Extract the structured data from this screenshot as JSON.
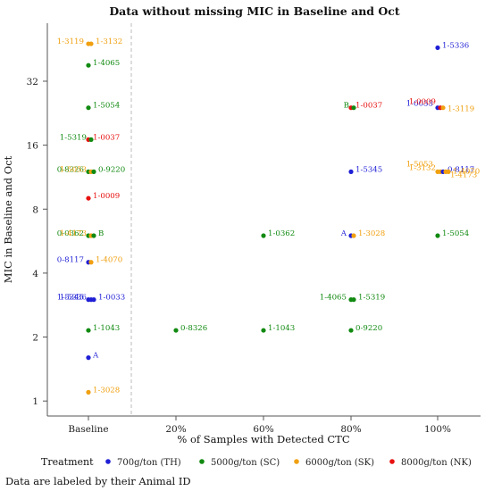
{
  "chart_data": {
    "type": "scatter",
    "title": "Data without missing MIC in Baseline and Oct",
    "xlabel": "% of Samples with Detected CTC",
    "ylabel": "MIC in Baseline and Oct",
    "x_categories": [
      "Baseline",
      "20%",
      "60%",
      "80%",
      "100%"
    ],
    "y_scale": "log2",
    "y_ticks": [
      1,
      2,
      4,
      8,
      16,
      32
    ],
    "ylim": [
      0.85,
      60
    ],
    "grid": false,
    "legend_placement": "bottom",
    "legend_title": "Treatment",
    "caption": "Data are labeled by their Animal ID",
    "series": [
      {
        "name": "700g/ton (TH)",
        "color": "#1f1fd6"
      },
      {
        "name": "5000g/ton (SC)",
        "color": "#118a11"
      },
      {
        "name": "6000g/ton (SK)",
        "color": "#f0a010"
      },
      {
        "name": "8000g/ton (NK)",
        "color": "#e81010"
      }
    ],
    "points": [
      {
        "x": "Baseline",
        "y": 48,
        "series": 2,
        "label": "1-3119",
        "side": "left",
        "off": 0
      },
      {
        "x": "Baseline",
        "y": 48,
        "series": 2,
        "label": "1-3132",
        "side": "right",
        "off": 0
      },
      {
        "x": "Baseline",
        "y": 38,
        "series": 1,
        "label": "1-4065",
        "side": "right",
        "off": 0
      },
      {
        "x": "Baseline",
        "y": 24,
        "series": 1,
        "label": "1-5054",
        "side": "right",
        "off": 0
      },
      {
        "x": "Baseline",
        "y": 17,
        "series": 3,
        "label": "1-0037",
        "side": "right",
        "off": 0
      },
      {
        "x": "Baseline",
        "y": 17,
        "series": 1,
        "label": "1-5319",
        "side": "left",
        "off": 0
      },
      {
        "x": "Baseline",
        "y": 12,
        "series": 1,
        "label": "0-8326",
        "side": "left",
        "off": 0
      },
      {
        "x": "Baseline",
        "y": 12,
        "series": 2,
        "label": "1-5053",
        "side": "left",
        "off": 0
      },
      {
        "x": "Baseline",
        "y": 12,
        "series": 1,
        "label": "0-9220",
        "side": "right",
        "off": 0
      },
      {
        "x": "Baseline",
        "y": 9,
        "series": 3,
        "label": "1-0009",
        "side": "right",
        "off": 0
      },
      {
        "x": "Baseline",
        "y": 6,
        "series": 1,
        "label": "0-0362",
        "side": "left",
        "off": 0
      },
      {
        "x": "Baseline",
        "y": 6,
        "series": 2,
        "label": "1-4173",
        "side": "left",
        "off": 0
      },
      {
        "x": "Baseline",
        "y": 6,
        "series": 1,
        "label": "B",
        "side": "right",
        "off": 0
      },
      {
        "x": "Baseline",
        "y": 4.5,
        "series": 0,
        "label": "0-8117",
        "side": "left",
        "off": 0
      },
      {
        "x": "Baseline",
        "y": 4.5,
        "series": 2,
        "label": "1-4070",
        "side": "right",
        "off": 0
      },
      {
        "x": "Baseline",
        "y": 3,
        "series": 0,
        "label": "1-5345",
        "side": "left",
        "off": 0
      },
      {
        "x": "Baseline",
        "y": 3,
        "series": 0,
        "label": "1-5336",
        "side": "left",
        "off": 0
      },
      {
        "x": "Baseline",
        "y": 3,
        "series": 0,
        "label": "1-0033",
        "side": "right",
        "off": 0
      },
      {
        "x": "Baseline",
        "y": 2.15,
        "series": 1,
        "label": "1-1043",
        "side": "right",
        "off": 0
      },
      {
        "x": "Baseline",
        "y": 1.6,
        "series": 0,
        "label": "A",
        "side": "right",
        "off": 0
      },
      {
        "x": "Baseline",
        "y": 1.1,
        "series": 2,
        "label": "1-3028",
        "side": "right",
        "off": 0
      },
      {
        "x": "20%",
        "y": 2.15,
        "series": 1,
        "label": "0-8326",
        "side": "right",
        "off": 0
      },
      {
        "x": "60%",
        "y": 6,
        "series": 1,
        "label": "1-0362",
        "side": "right",
        "off": 0
      },
      {
        "x": "60%",
        "y": 2.15,
        "series": 1,
        "label": "1-1043",
        "side": "right",
        "off": 0
      },
      {
        "x": "80%",
        "y": 24,
        "series": 3,
        "label": "1-0037",
        "side": "right",
        "off": 0
      },
      {
        "x": "80%",
        "y": 24,
        "series": 1,
        "label": "B",
        "side": "left",
        "off": 0
      },
      {
        "x": "80%",
        "y": 12,
        "series": 0,
        "label": "1-5345",
        "side": "right",
        "off": 0
      },
      {
        "x": "80%",
        "y": 6,
        "series": 0,
        "label": "A",
        "side": "left",
        "off": 0
      },
      {
        "x": "80%",
        "y": 6,
        "series": 2,
        "label": "1-3028",
        "side": "right",
        "off": 0
      },
      {
        "x": "80%",
        "y": 3,
        "series": 1,
        "label": "1-4065",
        "side": "left",
        "off": 0
      },
      {
        "x": "80%",
        "y": 3,
        "series": 1,
        "label": "1-5319",
        "side": "right",
        "off": 0
      },
      {
        "x": "80%",
        "y": 2.15,
        "series": 1,
        "label": "0-9220",
        "side": "right",
        "off": 0
      },
      {
        "x": "100%",
        "y": 46,
        "series": 0,
        "label": "1-5336",
        "side": "right",
        "off": 0
      },
      {
        "x": "100%",
        "y": 24,
        "series": 0,
        "label": "1-0033",
        "side": "left",
        "off": -2
      },
      {
        "x": "100%",
        "y": 24,
        "series": 3,
        "label": "1-0009",
        "side": "left",
        "off": -4
      },
      {
        "x": "100%",
        "y": 24,
        "series": 2,
        "label": "1-3119",
        "side": "right",
        "off": 4
      },
      {
        "x": "100%",
        "y": 12,
        "series": 2,
        "label": "1-5053",
        "side": "left",
        "off": -6
      },
      {
        "x": "100%",
        "y": 12,
        "series": 2,
        "label": "1-3132",
        "side": "left",
        "off": -2
      },
      {
        "x": "100%",
        "y": 12,
        "series": 0,
        "label": "0-8117",
        "side": "right",
        "off": 0
      },
      {
        "x": "100%",
        "y": 12,
        "series": 2,
        "label": "1-4173",
        "side": "right",
        "off": 6
      },
      {
        "x": "100%",
        "y": 12,
        "series": 2,
        "label": "1-4070",
        "side": "right",
        "off": 2
      },
      {
        "x": "100%",
        "y": 6,
        "series": 1,
        "label": "1-5054",
        "side": "right",
        "off": 0
      }
    ]
  }
}
